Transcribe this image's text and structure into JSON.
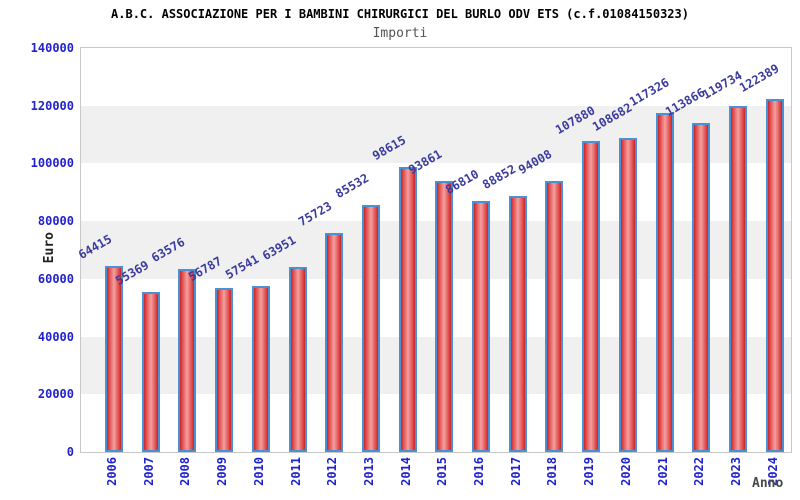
{
  "chart_data": {
    "type": "bar",
    "title": "A.B.C. ASSOCIAZIONE PER I BAMBINI CHIRURGICI DEL BURLO ODV ETS (c.f.01084150323)",
    "subtitle": "Importi",
    "xlabel": "Anno",
    "ylabel": "Euro",
    "categories": [
      "2006",
      "2007",
      "2008",
      "2009",
      "2010",
      "2011",
      "2012",
      "2013",
      "2014",
      "2015",
      "2016",
      "2017",
      "2018",
      "2019",
      "2020",
      "2021",
      "2022",
      "2023",
      "2024"
    ],
    "values": [
      64415,
      55369,
      63576,
      56787,
      57541,
      63951,
      75723,
      85532,
      98615,
      93861,
      86810,
      88852,
      94008,
      107880,
      108682,
      117326,
      113866,
      119734,
      122389
    ],
    "ylim": [
      0,
      140000
    ],
    "ytick_step": 20000,
    "yticks_top_to_bottom": [
      "140000",
      "120000",
      "100000",
      "80000",
      "60000",
      "40000",
      "20000",
      "0"
    ],
    "grid": "alternating horizontal bands every 20000, white/gray, no vertical grid",
    "value_label_rotation_deg": -30,
    "x_tick_rotation_deg": -90,
    "legend_position": "none",
    "colors": {
      "bar_fill_edge": "#c1272d",
      "bar_fill_highlight": "#f2a0a0",
      "bar_border": "#4a90d2",
      "axis_tick_label": "#2222cc",
      "value_label": "#3b3b9e",
      "band_gray": "#f0f0f0",
      "plot_border": "#c8c8c8",
      "title_color": "#000000",
      "subtitle_color": "#555555"
    }
  }
}
